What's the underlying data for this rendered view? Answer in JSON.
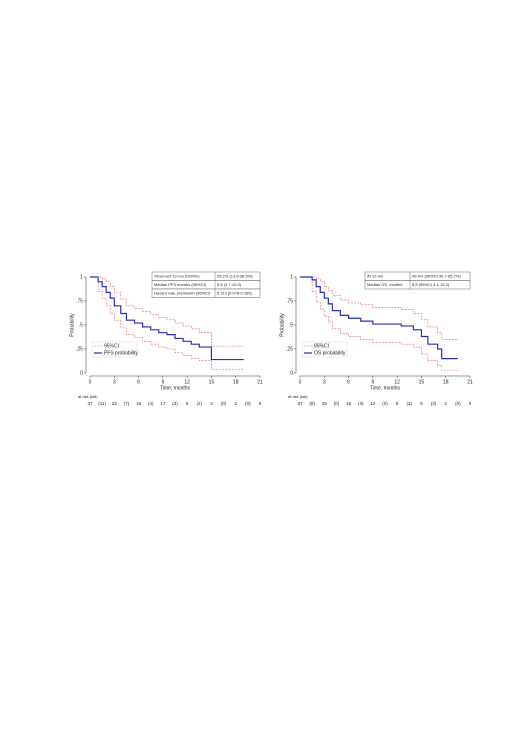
{
  "chart_data": [
    {
      "type": "line",
      "step": true,
      "y_label": "Probability",
      "x_label": "Time, months",
      "xlim": [
        0,
        21
      ],
      "xticks": [
        0,
        3,
        6,
        9,
        12,
        15,
        18,
        21
      ],
      "ylim": [
        0,
        1
      ],
      "yticks": [
        0,
        {
          "value": 0.25,
          "label": ".25"
        },
        {
          "value": 0.5,
          "label": ".5"
        },
        {
          "value": 0.75,
          "label": ".75"
        },
        1
      ],
      "x": [
        0,
        1,
        1,
        1.5,
        1.5,
        2,
        2,
        2.5,
        2.5,
        3,
        3,
        3.8,
        3.8,
        4.5,
        4.5,
        5.5,
        5.5,
        6.5,
        6.5,
        7.5,
        7.5,
        8.5,
        8.5,
        9.5,
        9.5,
        10.5,
        10.5,
        11.5,
        11.5,
        12.5,
        12.5,
        13.5,
        13.5,
        15,
        15,
        19
      ],
      "series": [
        {
          "name": "95%CI",
          "color": "#e0607a",
          "dash": true,
          "values": [
            1,
            1,
            1,
            1,
            0.98,
            0.98,
            0.95,
            0.95,
            0.9,
            0.9,
            0.84,
            0.84,
            0.77,
            0.77,
            0.7,
            0.7,
            0.67,
            0.67,
            0.64,
            0.64,
            0.61,
            0.61,
            0.58,
            0.58,
            0.56,
            0.56,
            0.52,
            0.52,
            0.49,
            0.49,
            0.46,
            0.46,
            0.42,
            0.42,
            0.28,
            0.28
          ]
        },
        {
          "name": "95%CI",
          "color": "#e0607a",
          "dash": true,
          "values": [
            1,
            1,
            0.85,
            0.85,
            0.78,
            0.78,
            0.7,
            0.7,
            0.62,
            0.62,
            0.55,
            0.55,
            0.47,
            0.47,
            0.4,
            0.4,
            0.37,
            0.37,
            0.33,
            0.33,
            0.3,
            0.3,
            0.27,
            0.27,
            0.25,
            0.25,
            0.21,
            0.21,
            0.18,
            0.18,
            0.15,
            0.15,
            0.13,
            0.13,
            0.04,
            0.04
          ]
        },
        {
          "name": "PFS probability",
          "color": "#2a2fb8",
          "dash": false,
          "values": [
            1,
            1,
            0.95,
            0.95,
            0.9,
            0.9,
            0.84,
            0.84,
            0.78,
            0.78,
            0.7,
            0.7,
            0.62,
            0.62,
            0.55,
            0.55,
            0.52,
            0.52,
            0.48,
            0.48,
            0.45,
            0.45,
            0.42,
            0.42,
            0.4,
            0.4,
            0.36,
            0.36,
            0.33,
            0.33,
            0.3,
            0.3,
            0.27,
            0.27,
            0.14,
            0.14
          ]
        }
      ],
      "legend": "lower left",
      "table": [
        [
          "Observed 12-mo (CI90%)",
          "25.2% (13.6-38.5%)"
        ],
        [
          "Median PFS months (95%CI)",
          "5.5 (3.7-10.0)"
        ],
        [
          "Hazard rate, pts/month (95%CI)",
          "0.113 (0.078-0.165)"
        ]
      ],
      "at_risk_label": "at risk (fail)",
      "at_risk": [
        "37",
        "(11)",
        "23",
        "(7)",
        "16",
        "(4)",
        "17",
        "(3)",
        "6",
        "(2)",
        "3",
        "(0)",
        "2",
        "(0)",
        "0"
      ]
    },
    {
      "type": "line",
      "step": true,
      "y_label": "Probability",
      "x_label": "Time, months",
      "xlim": [
        0,
        21
      ],
      "xticks": [
        0,
        3,
        6,
        9,
        12,
        15,
        18,
        21
      ],
      "ylim": [
        0,
        1
      ],
      "yticks": [
        0,
        {
          "value": 0.25,
          "label": ".25"
        },
        {
          "value": 0.5,
          "label": ".5"
        },
        {
          "value": 0.75,
          "label": ".75"
        },
        1
      ],
      "x": [
        0,
        1.5,
        1.5,
        2,
        2,
        2.5,
        2.5,
        3,
        3,
        3.5,
        3.5,
        4,
        4,
        5,
        5,
        6,
        6,
        7.5,
        7.5,
        9,
        9,
        12.5,
        12.5,
        14,
        14,
        15,
        15,
        15.8,
        15.8,
        17,
        17,
        17.5,
        17.5,
        19.5
      ],
      "series": [
        {
          "name": "95%CI",
          "color": "#e0607a",
          "dash": true,
          "values": [
            1,
            1,
            1,
            1,
            0.98,
            0.98,
            0.95,
            0.95,
            0.9,
            0.9,
            0.86,
            0.86,
            0.81,
            0.81,
            0.76,
            0.76,
            0.73,
            0.73,
            0.71,
            0.71,
            0.68,
            0.68,
            0.66,
            0.66,
            0.62,
            0.62,
            0.56,
            0.56,
            0.48,
            0.48,
            0.42,
            0.42,
            0.35,
            0.35
          ]
        },
        {
          "name": "95%CI",
          "color": "#e0607a",
          "dash": true,
          "values": [
            1,
            1,
            0.85,
            0.85,
            0.74,
            0.74,
            0.66,
            0.66,
            0.59,
            0.59,
            0.53,
            0.53,
            0.46,
            0.46,
            0.41,
            0.41,
            0.38,
            0.38,
            0.35,
            0.35,
            0.32,
            0.32,
            0.3,
            0.3,
            0.27,
            0.27,
            0.2,
            0.2,
            0.13,
            0.13,
            0.08,
            0.08,
            0.03,
            0.03
          ]
        },
        {
          "name": "OS probability",
          "color": "#2a2fb8",
          "dash": false,
          "values": [
            1,
            1,
            0.97,
            0.97,
            0.9,
            0.9,
            0.84,
            0.84,
            0.78,
            0.78,
            0.72,
            0.72,
            0.65,
            0.65,
            0.6,
            0.6,
            0.57,
            0.57,
            0.54,
            0.54,
            0.51,
            0.51,
            0.49,
            0.49,
            0.45,
            0.45,
            0.38,
            0.38,
            0.3,
            0.3,
            0.25,
            0.25,
            0.15,
            0.15
          ]
        }
      ],
      "legend": "lower left",
      "table": [
        [
          "At 12-mo",
          "49.4% (95%CI 30.7-65.7%)"
        ],
        [
          "Median OS, months",
          "8.8 (95%CI 4.1-15.2)"
        ]
      ],
      "at_risk_label": "at risk (fail)",
      "at_risk": [
        "37",
        "(8)",
        "25",
        "(0)",
        "16",
        "(3)",
        "12",
        "(0)",
        "9",
        "(2)",
        "5",
        "(3)",
        "2",
        "(0)",
        "0"
      ]
    }
  ]
}
